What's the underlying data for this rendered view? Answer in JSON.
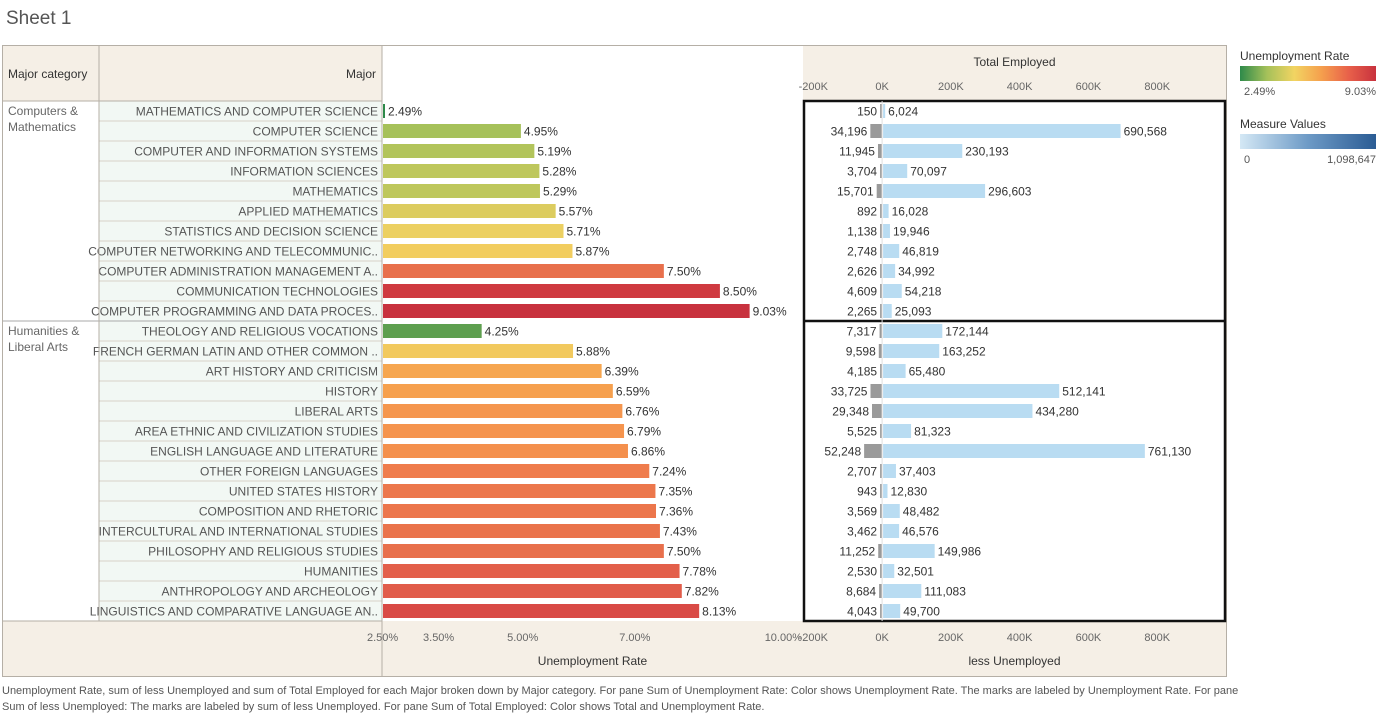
{
  "sheet_title": "Sheet 1",
  "footnote": "Unemployment Rate, sum of less Unemployed and sum of Total Employed for each Major broken down by Major category.  For pane Sum of Unemployment Rate:  Color shows Unemployment Rate.  The marks are labeled by Unemployment Rate.  For pane Sum of less Unemployed:  The marks are labeled by sum of less Unemployed.  For pane Sum of Total Employed:  Color shows Total and Unemployment Rate.",
  "legends": {
    "unemployment_rate": {
      "title": "Unemployment Rate",
      "min_label": "2.49%",
      "max_label": "9.03%",
      "colors": [
        "#2e8a4a",
        "#a6c15a",
        "#f2d462",
        "#f59f4d",
        "#e8604a",
        "#c8323e"
      ]
    },
    "measure_values": {
      "title": "Measure Values",
      "min_label": "0",
      "max_label": "1,098,647",
      "colors": [
        "#d4e8f5",
        "#6d9ac6",
        "#2b5c94"
      ]
    }
  },
  "chart_data": {
    "type": "bar",
    "headers": {
      "category": "Major category",
      "major": "Major",
      "employed_axis_title": "Total Employed",
      "rate_axis_title": "Unemployment Rate",
      "unemployed_axis_title": "less Unemployed"
    },
    "rate_axis": {
      "range": [
        0.0249,
        0.1
      ],
      "ticks": [
        "2.50%",
        "3.50%",
        "5.00%",
        "7.00%",
        "10.00%"
      ],
      "tick_values": [
        0.025,
        0.035,
        0.05,
        0.07,
        0.1
      ]
    },
    "count_axis": {
      "range": [
        -230000,
        1000000
      ],
      "ticks": [
        "-200K",
        "0K",
        "200K",
        "400K",
        "600K",
        "800K"
      ],
      "tick_values": [
        -200000,
        0,
        200000,
        400000,
        600000,
        800000
      ]
    },
    "colors": {
      "employed_bar": "#b9dcf2",
      "unemployed_bar": "#9a9a9a"
    },
    "groups": [
      {
        "category": "Computers & Mathematics",
        "category_lines": [
          "Computers &",
          "Mathematics"
        ],
        "rows": [
          {
            "major": "MATHEMATICS AND COMPUTER SCIENCE",
            "rate": 0.0249,
            "rate_label": "2.49%",
            "color": "#2e8a4a",
            "unemployed": 150,
            "unemployed_label": "150",
            "employed": 6024,
            "employed_label": "6,024"
          },
          {
            "major": "COMPUTER SCIENCE",
            "rate": 0.0495,
            "rate_label": "4.95%",
            "color": "#a6c15a",
            "unemployed": 34196,
            "unemployed_label": "34,196",
            "employed": 690568,
            "employed_label": "690,568"
          },
          {
            "major": "COMPUTER AND INFORMATION SYSTEMS",
            "rate": 0.0519,
            "rate_label": "5.19%",
            "color": "#b2c45b",
            "unemployed": 11945,
            "unemployed_label": "11,945",
            "employed": 230193,
            "employed_label": "230,193"
          },
          {
            "major": "INFORMATION SCIENCES",
            "rate": 0.0528,
            "rate_label": "5.28%",
            "color": "#bec75c",
            "unemployed": 3704,
            "unemployed_label": "3,704",
            "employed": 70097,
            "employed_label": "70,097"
          },
          {
            "major": "MATHEMATICS",
            "rate": 0.0529,
            "rate_label": "5.29%",
            "color": "#bec75c",
            "unemployed": 15701,
            "unemployed_label": "15,701",
            "employed": 296603,
            "employed_label": "296,603"
          },
          {
            "major": "APPLIED MATHEMATICS",
            "rate": 0.0557,
            "rate_label": "5.57%",
            "color": "#dccc5f",
            "unemployed": 892,
            "unemployed_label": "892",
            "employed": 16028,
            "employed_label": "16,028"
          },
          {
            "major": "STATISTICS AND DECISION SCIENCE",
            "rate": 0.0571,
            "rate_label": "5.71%",
            "color": "#ecd062",
            "unemployed": 1138,
            "unemployed_label": "1,138",
            "employed": 19946,
            "employed_label": "19,946"
          },
          {
            "major": "COMPUTER NETWORKING AND TELECOMMUNIC..",
            "rate": 0.0587,
            "rate_label": "5.87%",
            "color": "#f2cd5f",
            "unemployed": 2748,
            "unemployed_label": "2,748",
            "employed": 46819,
            "employed_label": "46,819"
          },
          {
            "major": "COMPUTER ADMINISTRATION MANAGEMENT A..",
            "rate": 0.075,
            "rate_label": "7.50%",
            "color": "#e8704c",
            "unemployed": 2626,
            "unemployed_label": "2,626",
            "employed": 34992,
            "employed_label": "34,992"
          },
          {
            "major": "COMMUNICATION TECHNOLOGIES",
            "rate": 0.085,
            "rate_label": "8.50%",
            "color": "#cf3a40",
            "unemployed": 4609,
            "unemployed_label": "4,609",
            "employed": 54218,
            "employed_label": "54,218"
          },
          {
            "major": "COMPUTER PROGRAMMING AND DATA PROCES..",
            "rate": 0.0903,
            "rate_label": "9.03%",
            "color": "#c8323e",
            "unemployed": 2265,
            "unemployed_label": "2,265",
            "employed": 25093,
            "employed_label": "25,093"
          }
        ]
      },
      {
        "category": "Humanities & Liberal Arts",
        "category_lines": [
          "Humanities &",
          "Liberal Arts"
        ],
        "rows": [
          {
            "major": "THEOLOGY AND RELIGIOUS VOCATIONS",
            "rate": 0.0425,
            "rate_label": "4.25%",
            "color": "#5e9f4f",
            "unemployed": 7317,
            "unemployed_label": "7,317",
            "employed": 172144,
            "employed_label": "172,144"
          },
          {
            "major": "FRENCH GERMAN LATIN AND OTHER COMMON ..",
            "rate": 0.0588,
            "rate_label": "5.88%",
            "color": "#f2c95e",
            "unemployed": 9598,
            "unemployed_label": "9,598",
            "employed": 163252,
            "employed_label": "163,252"
          },
          {
            "major": "ART HISTORY AND CRITICISM",
            "rate": 0.0639,
            "rate_label": "6.39%",
            "color": "#f6a650",
            "unemployed": 4185,
            "unemployed_label": "4,185",
            "employed": 65480,
            "employed_label": "65,480"
          },
          {
            "major": "HISTORY",
            "rate": 0.0659,
            "rate_label": "6.59%",
            "color": "#f6a04e",
            "unemployed": 33725,
            "unemployed_label": "33,725",
            "employed": 512141,
            "employed_label": "512,141"
          },
          {
            "major": "LIBERAL ARTS",
            "rate": 0.0676,
            "rate_label": "6.76%",
            "color": "#f5964e",
            "unemployed": 29348,
            "unemployed_label": "29,348",
            "employed": 434280,
            "employed_label": "434,280"
          },
          {
            "major": "AREA ETHNIC AND CIVILIZATION STUDIES",
            "rate": 0.0679,
            "rate_label": "6.79%",
            "color": "#f5944e",
            "unemployed": 5525,
            "unemployed_label": "5,525",
            "employed": 81323,
            "employed_label": "81,323"
          },
          {
            "major": "ENGLISH LANGUAGE AND LITERATURE",
            "rate": 0.0686,
            "rate_label": "6.86%",
            "color": "#f4904d",
            "unemployed": 52248,
            "unemployed_label": "52,248",
            "employed": 761130,
            "employed_label": "761,130"
          },
          {
            "major": "OTHER FOREIGN LANGUAGES",
            "rate": 0.0724,
            "rate_label": "7.24%",
            "color": "#ef7c4c",
            "unemployed": 2707,
            "unemployed_label": "2,707",
            "employed": 37403,
            "employed_label": "37,403"
          },
          {
            "major": "UNITED STATES HISTORY",
            "rate": 0.0735,
            "rate_label": "7.35%",
            "color": "#ec774c",
            "unemployed": 943,
            "unemployed_label": "943",
            "employed": 12830,
            "employed_label": "12,830"
          },
          {
            "major": "COMPOSITION AND RHETORIC",
            "rate": 0.0736,
            "rate_label": "7.36%",
            "color": "#ec764c",
            "unemployed": 3569,
            "unemployed_label": "3,569",
            "employed": 48482,
            "employed_label": "48,482"
          },
          {
            "major": "INTERCULTURAL AND INTERNATIONAL STUDIES",
            "rate": 0.0743,
            "rate_label": "7.43%",
            "color": "#ea734b",
            "unemployed": 3462,
            "unemployed_label": "3,462",
            "employed": 46576,
            "employed_label": "46,576"
          },
          {
            "major": "PHILOSOPHY AND RELIGIOUS STUDIES",
            "rate": 0.075,
            "rate_label": "7.50%",
            "color": "#e8704c",
            "unemployed": 11252,
            "unemployed_label": "11,252",
            "employed": 149986,
            "employed_label": "149,986"
          },
          {
            "major": "HUMANITIES",
            "rate": 0.0778,
            "rate_label": "7.78%",
            "color": "#e35f4a",
            "unemployed": 2530,
            "unemployed_label": "2,530",
            "employed": 32501,
            "employed_label": "32,501"
          },
          {
            "major": "ANTHROPOLOGY AND ARCHEOLOGY",
            "rate": 0.0782,
            "rate_label": "7.82%",
            "color": "#e15c4a",
            "unemployed": 8684,
            "unemployed_label": "8,684",
            "employed": 111083,
            "employed_label": "111,083"
          },
          {
            "major": "LINGUISTICS AND COMPARATIVE LANGUAGE AN..",
            "rate": 0.0813,
            "rate_label": "8.13%",
            "color": "#d94a45",
            "unemployed": 4043,
            "unemployed_label": "4,043",
            "employed": 49700,
            "employed_label": "49,700"
          }
        ]
      }
    ]
  }
}
